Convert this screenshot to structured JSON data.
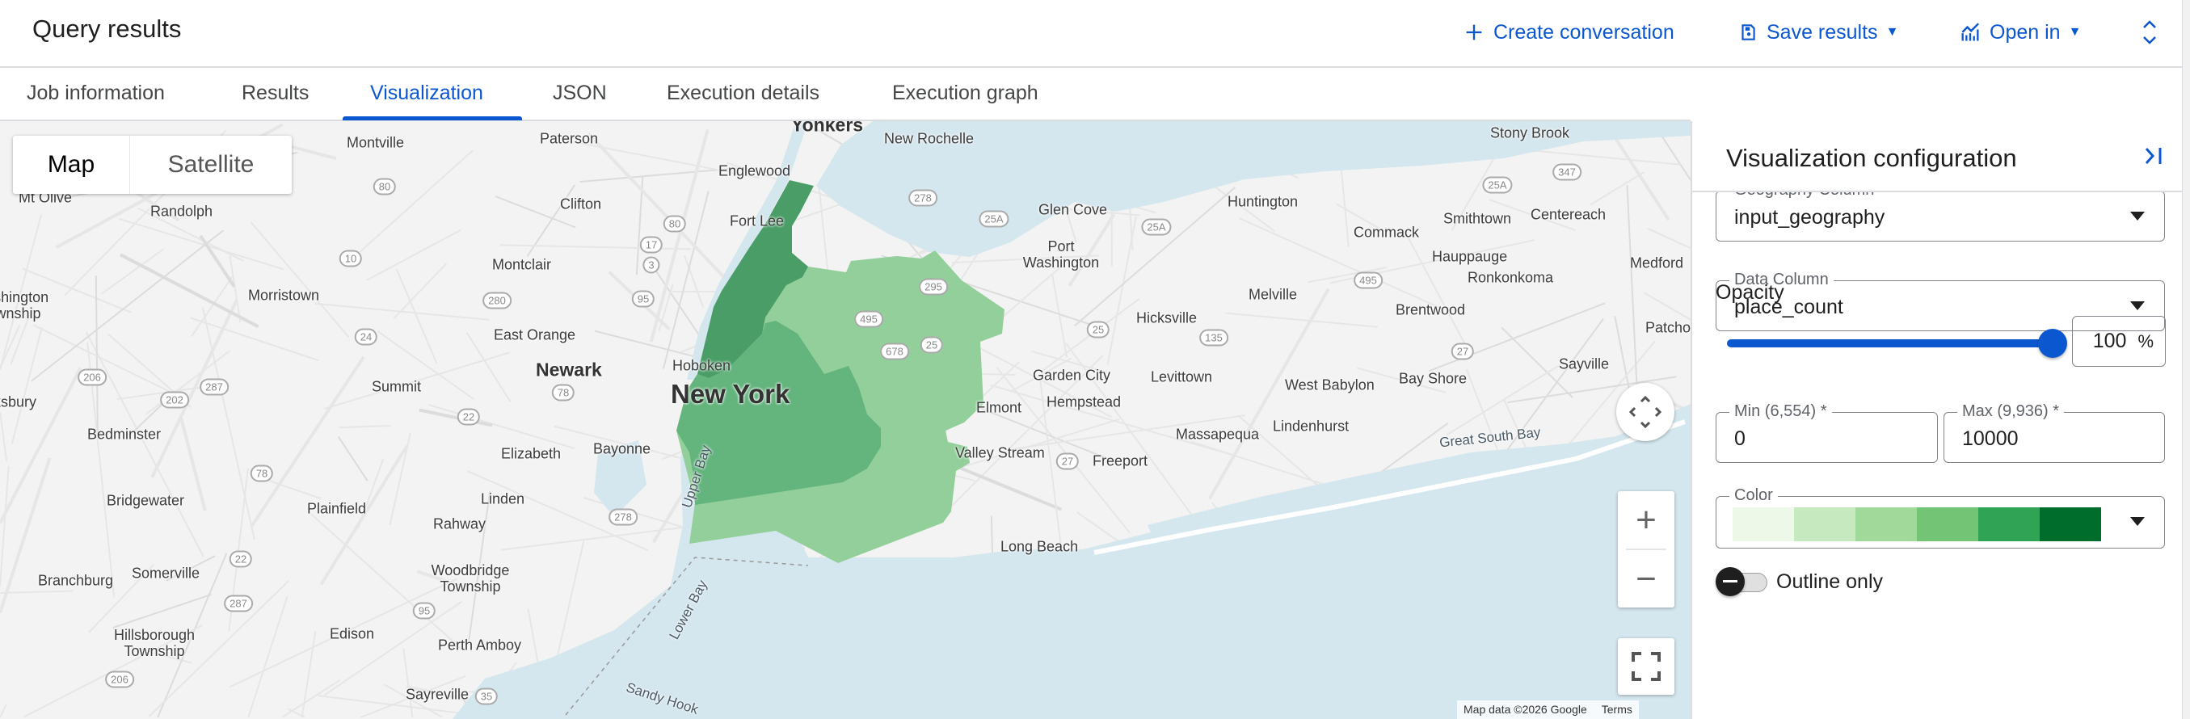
{
  "header": {
    "title": "Query results",
    "create_conversation": "Create conversation",
    "save_results": "Save results",
    "open_in": "Open in"
  },
  "tabs": [
    "Job information",
    "Results",
    "Visualization",
    "JSON",
    "Execution details",
    "Execution graph"
  ],
  "active_tab": "Visualization",
  "map": {
    "map_type": {
      "map": "Map",
      "satellite": "Satellite",
      "selected": "Map"
    },
    "attribution": "Map data ©2026 Google",
    "terms": "Terms",
    "fill_colors": {
      "manhattan": "#4a9d67",
      "brooklyn": "#64b47d",
      "queens": "#93cf9a"
    },
    "places": [
      "Montville",
      "Paterson",
      "New Rochelle",
      "Yonkers",
      "Stony Brook",
      "Mt Olive",
      "Randolph",
      "Clifton",
      "Englewood",
      "Fort Lee",
      "Glen Cove",
      "Huntington",
      "Smithtown",
      "Centereach",
      "Commack",
      "Port Washington",
      "Hauppauge",
      "Medford",
      "Montclair",
      "Ronkonkoma",
      "Morristown",
      "Washington Township",
      "Melville",
      "Brentwood",
      "Hicksville",
      "East Orange",
      "Patchogue",
      "Hoboken",
      "Newark",
      "Summit",
      "New York",
      "Garden City",
      "Levittown",
      "West Babylon",
      "Bay Shore",
      "Sayville",
      "Hempstead",
      "Elmont",
      "Tewksbury",
      "Bedminster",
      "Massapequa",
      "Lindenhurst",
      "Great South Bay",
      "Elizabeth",
      "Bayonne",
      "Valley Stream",
      "Freeport",
      "Plainfield",
      "Linden",
      "Rahway",
      "Long Beach",
      "Bridgewater",
      "Somerville",
      "Branchburg",
      "Woodbridge Township",
      "Hillsborough Township",
      "Edison",
      "Perth Amboy",
      "Sayreville",
      "Upper Bay",
      "Lower Bay",
      "Sandy Hook"
    ],
    "shields": [
      "80",
      "80",
      "17",
      "3",
      "95",
      "10",
      "24",
      "280",
      "206",
      "202",
      "287",
      "78",
      "22",
      "78",
      "22",
      "287",
      "95",
      "206",
      "35",
      "278",
      "278",
      "25A",
      "25A",
      "25",
      "135",
      "495",
      "27",
      "27",
      "25A",
      "347",
      "295",
      "495",
      "678",
      "25"
    ]
  },
  "panel": {
    "title": "Visualization configuration",
    "geography_column": {
      "label": "Geography Column",
      "value": "input_geography"
    },
    "data_column": {
      "label": "Data Column",
      "value": "place_count"
    },
    "opacity": {
      "label": "Opacity",
      "value": "100",
      "unit": "%",
      "percent": 100
    },
    "min": {
      "label": "Min (6,554) *",
      "value": "0"
    },
    "max": {
      "label": "Max (9,936) *",
      "value": "10000"
    },
    "color": {
      "label": "Color",
      "swatches": [
        "#edf8e9",
        "#c7e9c0",
        "#a1d99b",
        "#74c476",
        "#31a354",
        "#006d2c"
      ]
    },
    "outline_only": {
      "label": "Outline only",
      "enabled": false
    }
  }
}
